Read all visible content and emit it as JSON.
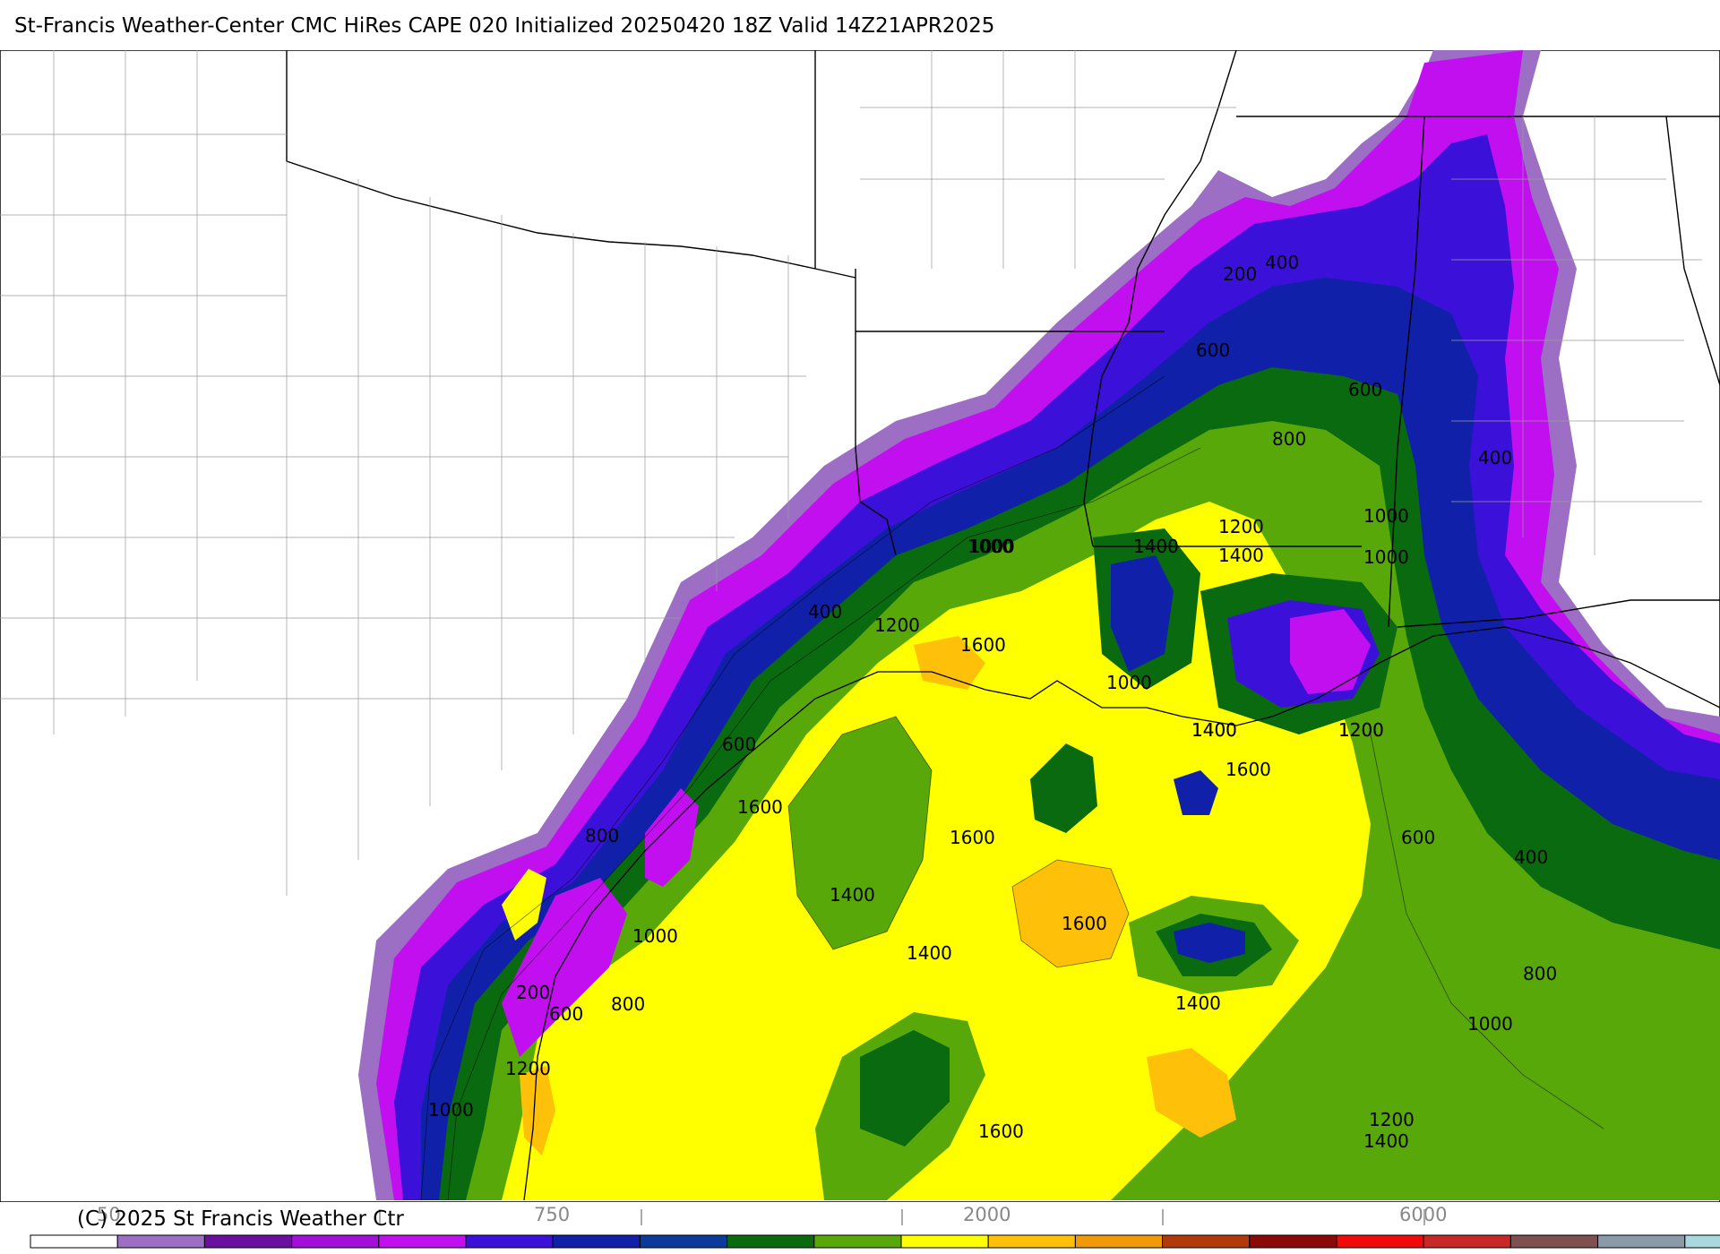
{
  "header": {
    "title": "St-Francis Weather-Center CMC HiRes CAPE  020 Initialized 20250420 18Z Valid 14Z21APR2025"
  },
  "footer": {
    "copyright": "(C) 2025 St Francis Weather Ctr"
  },
  "contour_labels": [
    "200",
    "400",
    "600",
    "600",
    "800",
    "1000",
    "1000",
    "1200",
    "1200",
    "1400",
    "1400",
    "1400",
    "1000",
    "1000",
    "400",
    "400",
    "1200",
    "1600",
    "1000",
    "600",
    "1400",
    "1600",
    "1200",
    "1600",
    "1600",
    "1400",
    "1400",
    "1600",
    "800",
    "1000",
    "200",
    "600",
    "800",
    "1200",
    "1000",
    "600",
    "400",
    "800",
    "1400",
    "1000",
    "1200",
    "1400",
    "1600"
  ],
  "colorbar": {
    "colors": [
      "#ffffff",
      "#9c6fc4",
      "#6a0fa0",
      "#a10fd8",
      "#c10ff0",
      "#3b10d8",
      "#1020a8",
      "#0a3a9a",
      "#0a6a10",
      "#58a80a",
      "#ffff00",
      "#ffc00a",
      "#f09a0a",
      "#b03a0a",
      "#8a0a0a",
      "#f00a0a",
      "#c82828",
      "#805050",
      "#8a9aa8",
      "#a8d8e0"
    ],
    "tick_labels": [
      "50",
      "750",
      "2000",
      "6000"
    ]
  }
}
